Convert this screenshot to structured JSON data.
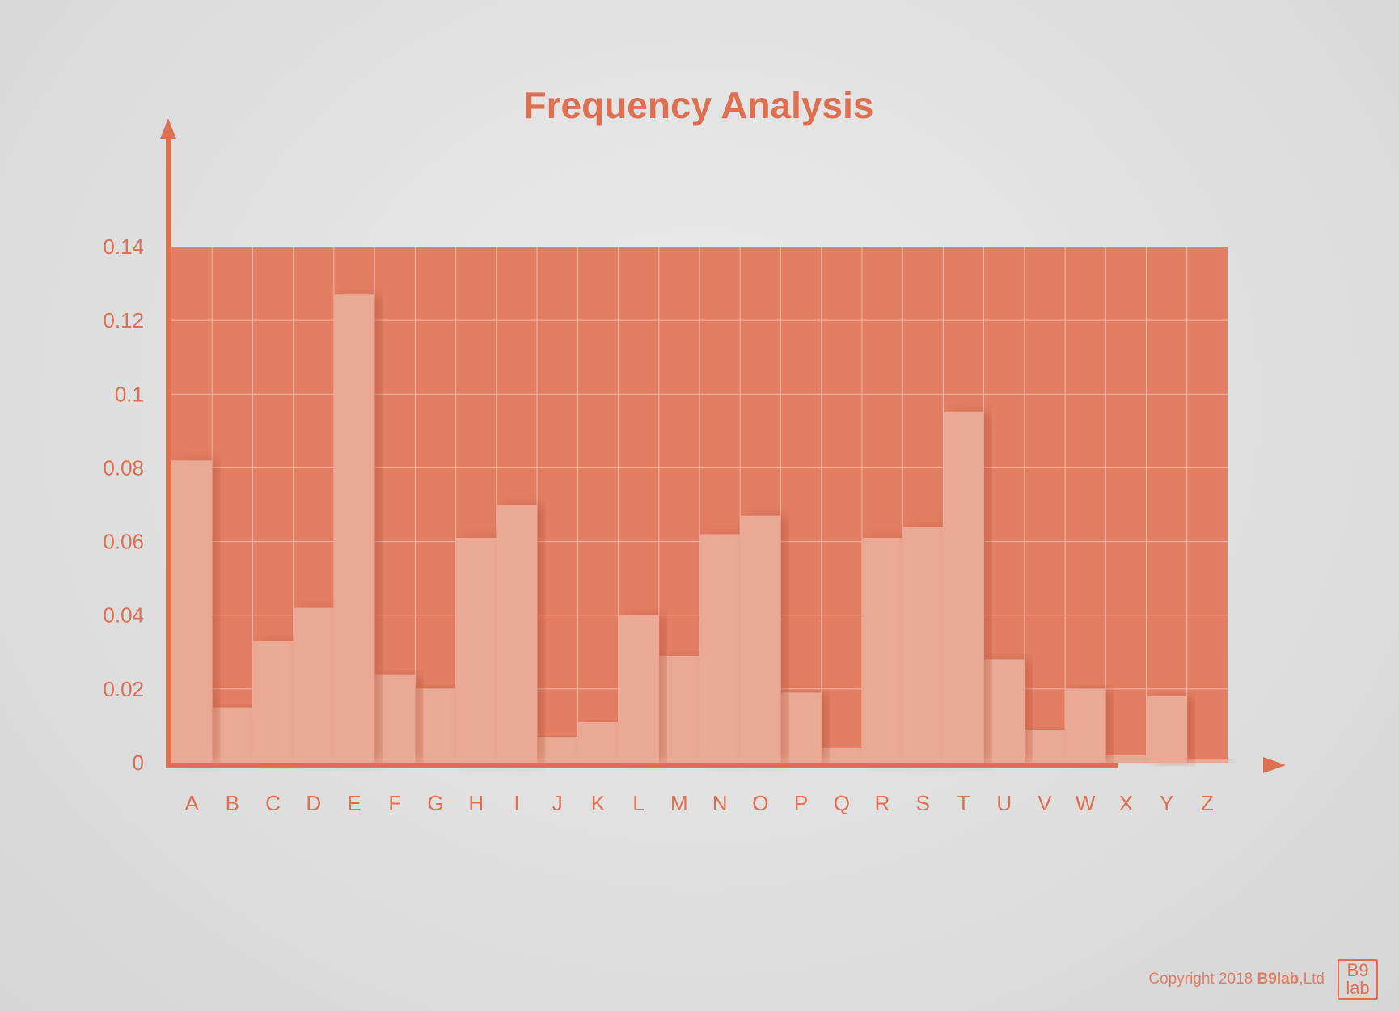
{
  "colors": {
    "accent": "#de6f51",
    "plot_bg": "#e27e64",
    "bar": "#eaa995",
    "grid": "#f2b8a6"
  },
  "chart_data": {
    "type": "bar",
    "title": "Frequency Analysis",
    "xlabel": "",
    "ylabel": "",
    "categories": [
      "A",
      "B",
      "C",
      "D",
      "E",
      "F",
      "G",
      "H",
      "I",
      "J",
      "K",
      "L",
      "M",
      "N",
      "O",
      "P",
      "Q",
      "R",
      "S",
      "T",
      "U",
      "V",
      "W",
      "X",
      "Y",
      "Z"
    ],
    "values": [
      0.082,
      0.015,
      0.033,
      0.042,
      0.127,
      0.024,
      0.02,
      0.061,
      0.07,
      0.007,
      0.011,
      0.04,
      0.029,
      0.062,
      0.067,
      0.019,
      0.004,
      0.061,
      0.064,
      0.095,
      0.028,
      0.009,
      0.02,
      0.002,
      0.018,
      0.001
    ],
    "ylim": [
      0,
      0.14
    ],
    "yticks": [
      "0",
      "0.02",
      "0.04",
      "0.06",
      "0.08",
      "0.1",
      "0.12",
      "0.14"
    ],
    "grid": true,
    "legend": "none"
  },
  "footer": {
    "copyright_prefix": "Copyright 2018 ",
    "brand": "B9lab",
    "copyright_suffix": ",Ltd",
    "logo_line1": "B9",
    "logo_line2": "lab"
  }
}
